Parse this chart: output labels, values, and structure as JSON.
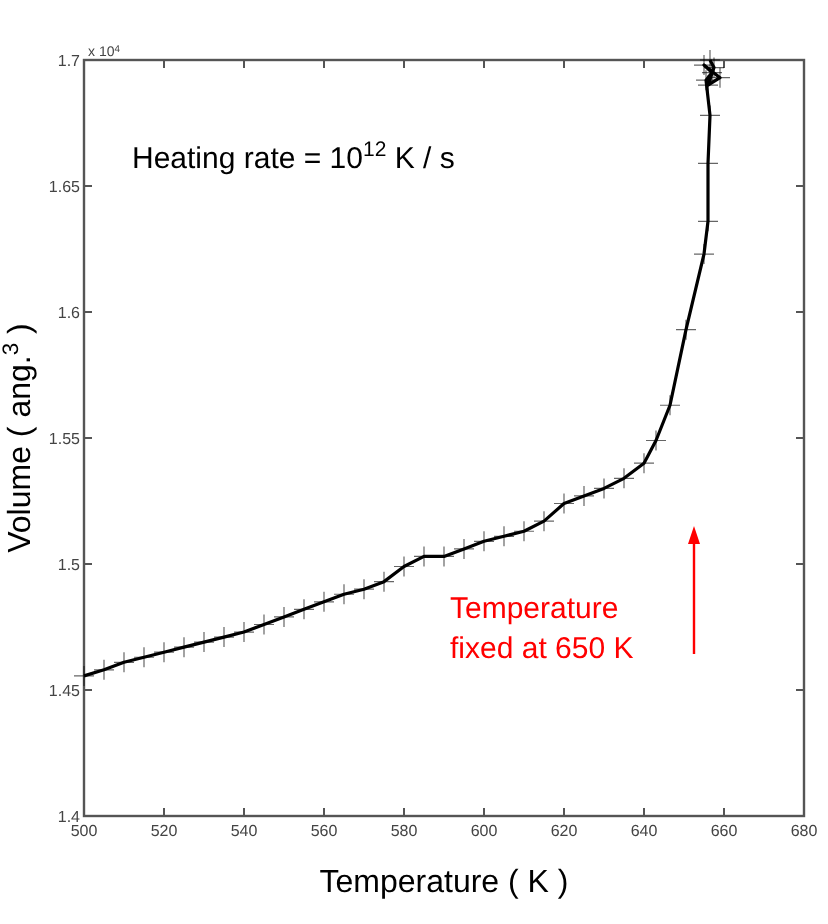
{
  "chart_data": {
    "type": "line",
    "xlabel": "Temperature ( K )",
    "ylabel": "Volume ( ang.$^{3}$ )",
    "annotations": [
      "x 10$^{4}$",
      "Heating rate = 10$^{12}$ K / s",
      "Temperature fixed at 650 K"
    ],
    "series": [
      {
        "color": "#000000",
        "x": [
          500,
          505,
          510,
          515,
          520,
          525,
          530,
          535,
          540,
          545,
          550,
          555,
          560,
          565,
          570,
          575,
          580,
          585,
          590,
          595,
          600,
          605,
          610,
          615,
          620,
          625,
          630,
          635,
          640,
          643,
          646.5,
          650.5,
          655,
          656,
          656,
          656.5,
          655.5,
          657,
          655,
          659,
          656,
          657.5,
          656.5
        ],
        "values": [
          1.4556,
          1.458,
          1.461,
          1.463,
          1.465,
          1.467,
          1.469,
          1.471,
          1.473,
          1.476,
          1.479,
          1.482,
          1.485,
          1.488,
          1.49,
          1.493,
          1.499,
          1.503,
          1.503,
          1.506,
          1.509,
          1.511,
          1.513,
          1.517,
          1.524,
          1.527,
          1.53,
          1.534,
          1.54,
          1.549,
          1.563,
          1.593,
          1.623,
          1.636,
          1.659,
          1.678,
          1.692,
          1.695,
          1.698,
          1.693,
          1.69,
          1.697,
          1.7
        ]
      }
    ],
    "xlim": [
      500,
      680
    ],
    "xticks": [
      500,
      520,
      540,
      560,
      580,
      600,
      620,
      640,
      660,
      680
    ],
    "ylim": [
      1.4,
      1.7
    ],
    "yticks": [
      1.4,
      1.45,
      1.5,
      1.55,
      1.6,
      1.65,
      1.7
    ],
    "grid": false,
    "marker": "cross",
    "line_style": "solid"
  }
}
